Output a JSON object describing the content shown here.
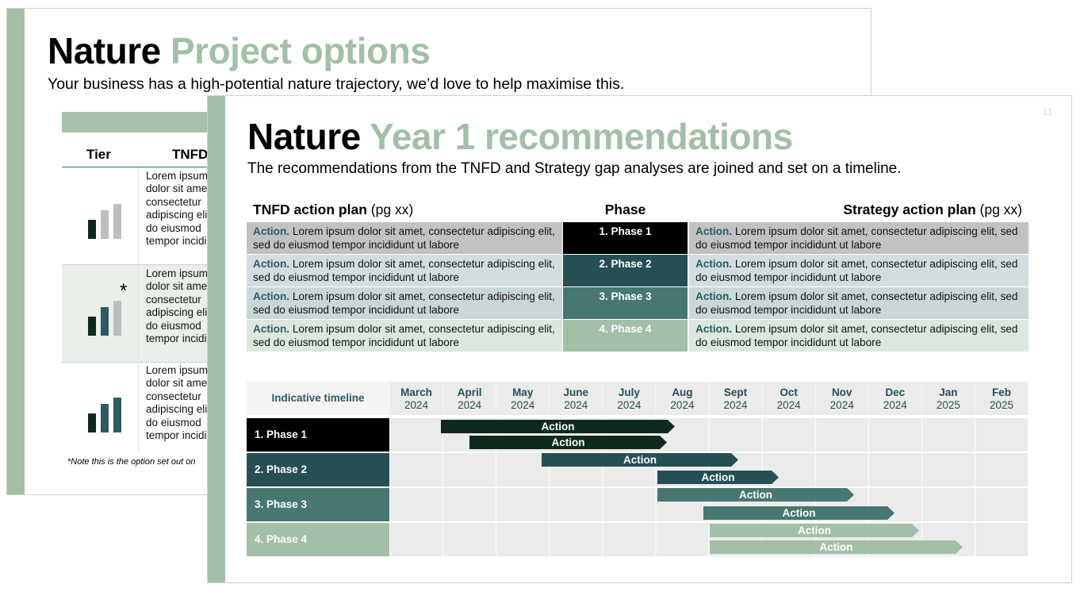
{
  "back_slide": {
    "title_bold": "Nature",
    "title_accent": "Project options",
    "subtitle": "Your business has a high-potential nature trajectory, we’d love to help maximise this.",
    "table": {
      "headers": [
        "Tier",
        "TNFD"
      ],
      "marker": "*",
      "rows": [
        [
          "Lorem ipsum",
          "dolor sit amet,",
          "consectetur",
          "adipiscing elit,",
          "do eiusmod",
          "tempor incididunt"
        ],
        [
          "Lorem ipsum",
          "dolor sit amet,",
          "consectetur",
          "adipiscing elit,",
          "do eiusmod",
          "tempor incididunt"
        ],
        [
          "Lorem ipsum",
          "dolor sit amet,",
          "consectetur",
          "adipiscing elit,",
          "do eiusmod",
          "tempor incididunt"
        ]
      ]
    },
    "note": "*Note this is the option set out on"
  },
  "front_slide": {
    "page_number": "11",
    "title_bold": "Nature",
    "title_accent": "Year 1 recommendations",
    "subtitle": "The recommendations from the TNFD and Strategy gap analyses are joined and set on a timeline.",
    "action_table": {
      "headers": {
        "left": {
          "bold": "TNFD action plan",
          "normal": "(pg xx)"
        },
        "phase": "Phase",
        "right": {
          "bold": "Strategy action plan",
          "normal": "(pg xx)"
        }
      },
      "rows": [
        {
          "phase": "1. Phase 1",
          "left": {
            "lead": "Action.",
            "text": "Lorem ipsum dolor sit amet, consectetur adipiscing elit, sed do eiusmod tempor incididunt ut labore"
          },
          "right": {
            "lead": "Action.",
            "text": "Lorem ipsum dolor sit amet, consectetur adipiscing elit, sed do eiusmod tempor incididunt ut labore"
          }
        },
        {
          "phase": "2. Phase 2",
          "left": {
            "lead": "Action.",
            "text": "Lorem ipsum dolor sit amet, consectetur adipiscing elit, sed do eiusmod tempor incididunt ut labore"
          },
          "right": {
            "lead": "Action.",
            "text": "Lorem ipsum dolor sit amet, consectetur adipiscing elit, sed do eiusmod tempor incididunt ut labore"
          }
        },
        {
          "phase": "3. Phase 3",
          "left": {
            "lead": "Action.",
            "text": "Lorem ipsum dolor sit amet, consectetur adipiscing elit, sed do eiusmod tempor incididunt ut labore"
          },
          "right": {
            "lead": "Action.",
            "text": "Lorem ipsum dolor sit amet, consectetur adipiscing elit, sed do eiusmod tempor incididunt ut labore"
          }
        },
        {
          "phase": "4. Phase 4",
          "left": {
            "lead": "Action.",
            "text": "Lorem ipsum dolor sit amet, consectetur adipiscing elit, sed do eiusmod tempor incididunt ut labore"
          },
          "right": {
            "lead": "Action.",
            "text": "Lorem ipsum dolor sit amet, consectetur adipiscing elit, sed do eiusmod tempor incididunt ut labore"
          }
        }
      ]
    },
    "timeline": {
      "label": "Indicative timeline",
      "months": [
        {
          "month": "March",
          "year": "2024"
        },
        {
          "month": "April",
          "year": "2024"
        },
        {
          "month": "May",
          "year": "2024"
        },
        {
          "month": "June",
          "year": "2024"
        },
        {
          "month": "July",
          "year": "2024"
        },
        {
          "month": "Aug",
          "year": "2024"
        },
        {
          "month": "Sept",
          "year": "2024"
        },
        {
          "month": "Oct",
          "year": "2024"
        },
        {
          "month": "Nov",
          "year": "2024"
        },
        {
          "month": "Dec",
          "year": "2024"
        },
        {
          "month": "Jan",
          "year": "2025"
        },
        {
          "month": "Feb",
          "year": "2025"
        }
      ],
      "phases": [
        {
          "name": "1. Phase 1",
          "bars": [
            "Action",
            "Action"
          ]
        },
        {
          "name": "2. Phase 2",
          "bars": [
            "Action",
            "Action"
          ]
        },
        {
          "name": "3. Phase 3",
          "bars": [
            "Action",
            "Action"
          ]
        },
        {
          "name": "4. Phase 4",
          "bars": [
            "Action",
            "Action"
          ]
        }
      ]
    }
  }
}
